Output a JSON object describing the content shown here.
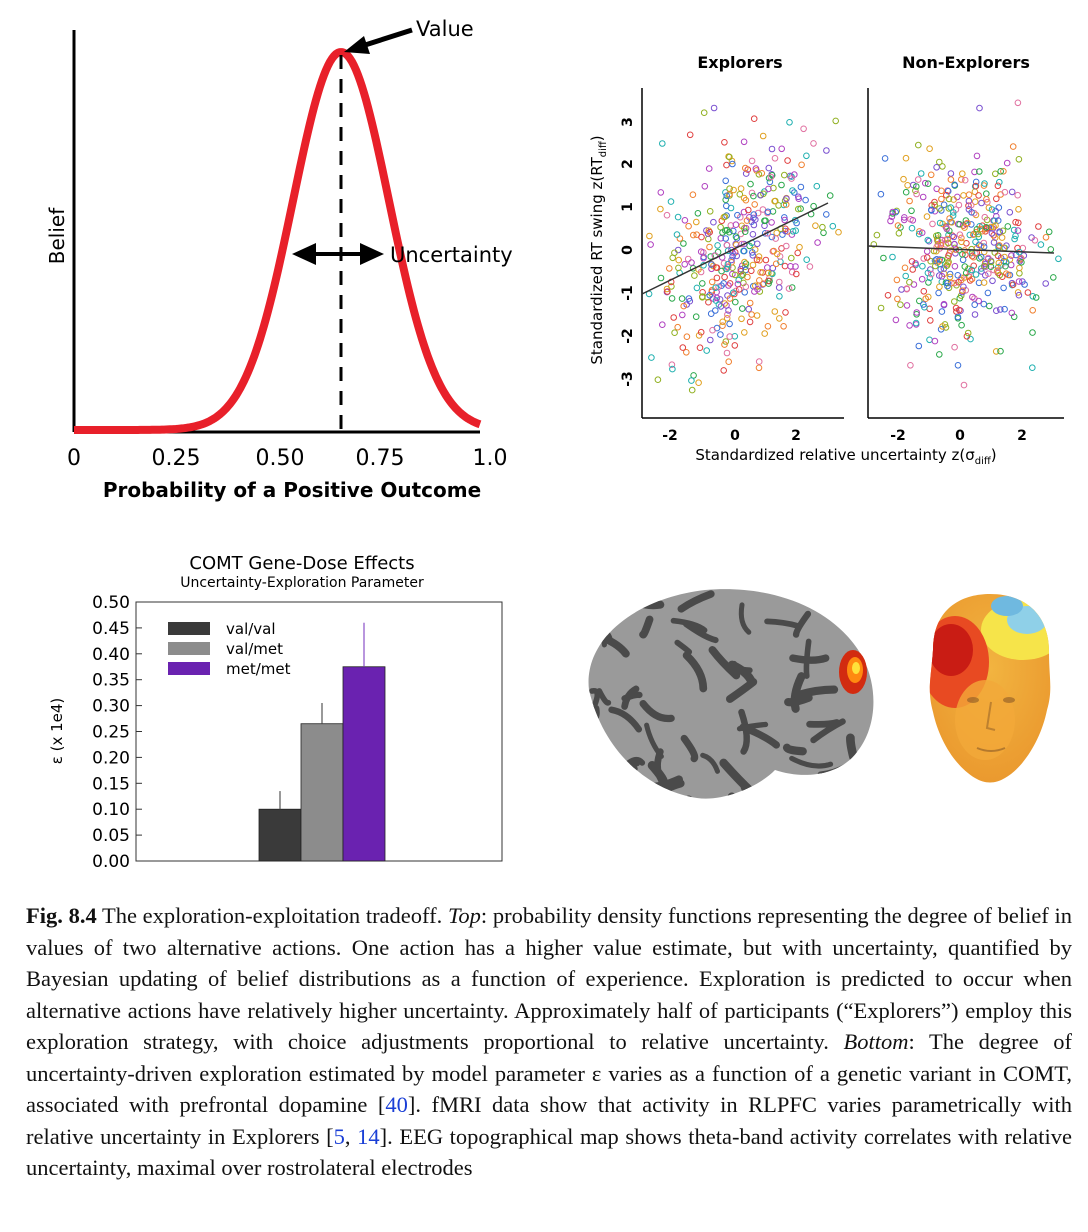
{
  "belief_panel": {
    "ylabel": "Belief",
    "xlabel": "Probability of a Positive Outcome",
    "ticks": [
      "0",
      "0.25",
      "0.50",
      "0.75",
      "1.0"
    ],
    "value_label": "Value",
    "uncertainty_label": "Uncertainty",
    "curve_color": "#e8202a"
  },
  "scatter_panel": {
    "titles": [
      "Explorers",
      "Non-Explorers"
    ],
    "ylabel": "Standardized RT swing z(RT",
    "ylabel_sub": "diff",
    "ylabel_tail": ")",
    "xlabel": "Standardized relative uncertainty z(σ",
    "xlabel_sub": "diff",
    "xlabel_tail": ")",
    "yticks": [
      "3",
      "2",
      "1",
      "0",
      "-1",
      "-2",
      "-3"
    ],
    "xticks": [
      "-2",
      "0",
      "2"
    ]
  },
  "bar_panel": {
    "title": "COMT Gene-Dose Effects",
    "subtitle": "Uncertainty-Exploration Parameter",
    "ylabel": "ε (x 1e4)",
    "yticks": [
      "0.50",
      "0.45",
      "0.40",
      "0.35",
      "0.30",
      "0.25",
      "0.20",
      "0.15",
      "0.10",
      "0.05",
      "0.00"
    ]
  },
  "chart_data": {
    "type": "bar",
    "title": "COMT Gene-Dose Effects",
    "subtitle": "Uncertainty-Exploration Parameter",
    "ylabel": "ε (x 1e4)",
    "ylim": [
      0,
      0.5
    ],
    "series": [
      {
        "name": "val/val",
        "values": [
          0.1
        ],
        "error": 0.035,
        "color": "#3a3a3a"
      },
      {
        "name": "val/met",
        "values": [
          0.265
        ],
        "error": 0.04,
        "color": "#8c8c8c"
      },
      {
        "name": "met/met",
        "values": [
          0.375
        ],
        "error": 0.085,
        "color": "#6a22b0"
      }
    ]
  },
  "caption": {
    "label": "Fig. 8.4",
    "p1": " The exploration-exploitation tradeoff. ",
    "top_label": "Top",
    "p2": ": probability density functions representing the degree of belief in values of two alternative actions. One action has a higher value estimate, but with uncertainty, quantified by Bayesian updating of belief distributions as a function of experience. Exploration is predicted to occur when alternative actions have relatively higher uncertainty. Approximately half of participants (“Explorers”) employ this exploration strategy, with choice adjustments proportional to relative uncertainty. ",
    "bottom_label": "Bottom",
    "p3": ": The degree of uncertainty-driven exploration estimated by model parameter ε varies as a function of a genetic variant in COMT, associated with prefrontal dopamine [",
    "ref1": "40",
    "p4": "]. fMRI data show that activity in RLPFC varies parametrically with relative uncertainty in Explorers [",
    "ref2": "5",
    "p5": ", ",
    "ref3": "14",
    "p6": "]. EEG topographical map shows theta-band activity correlates with relative uncertainty, maximal over rostrolateral electrodes"
  }
}
